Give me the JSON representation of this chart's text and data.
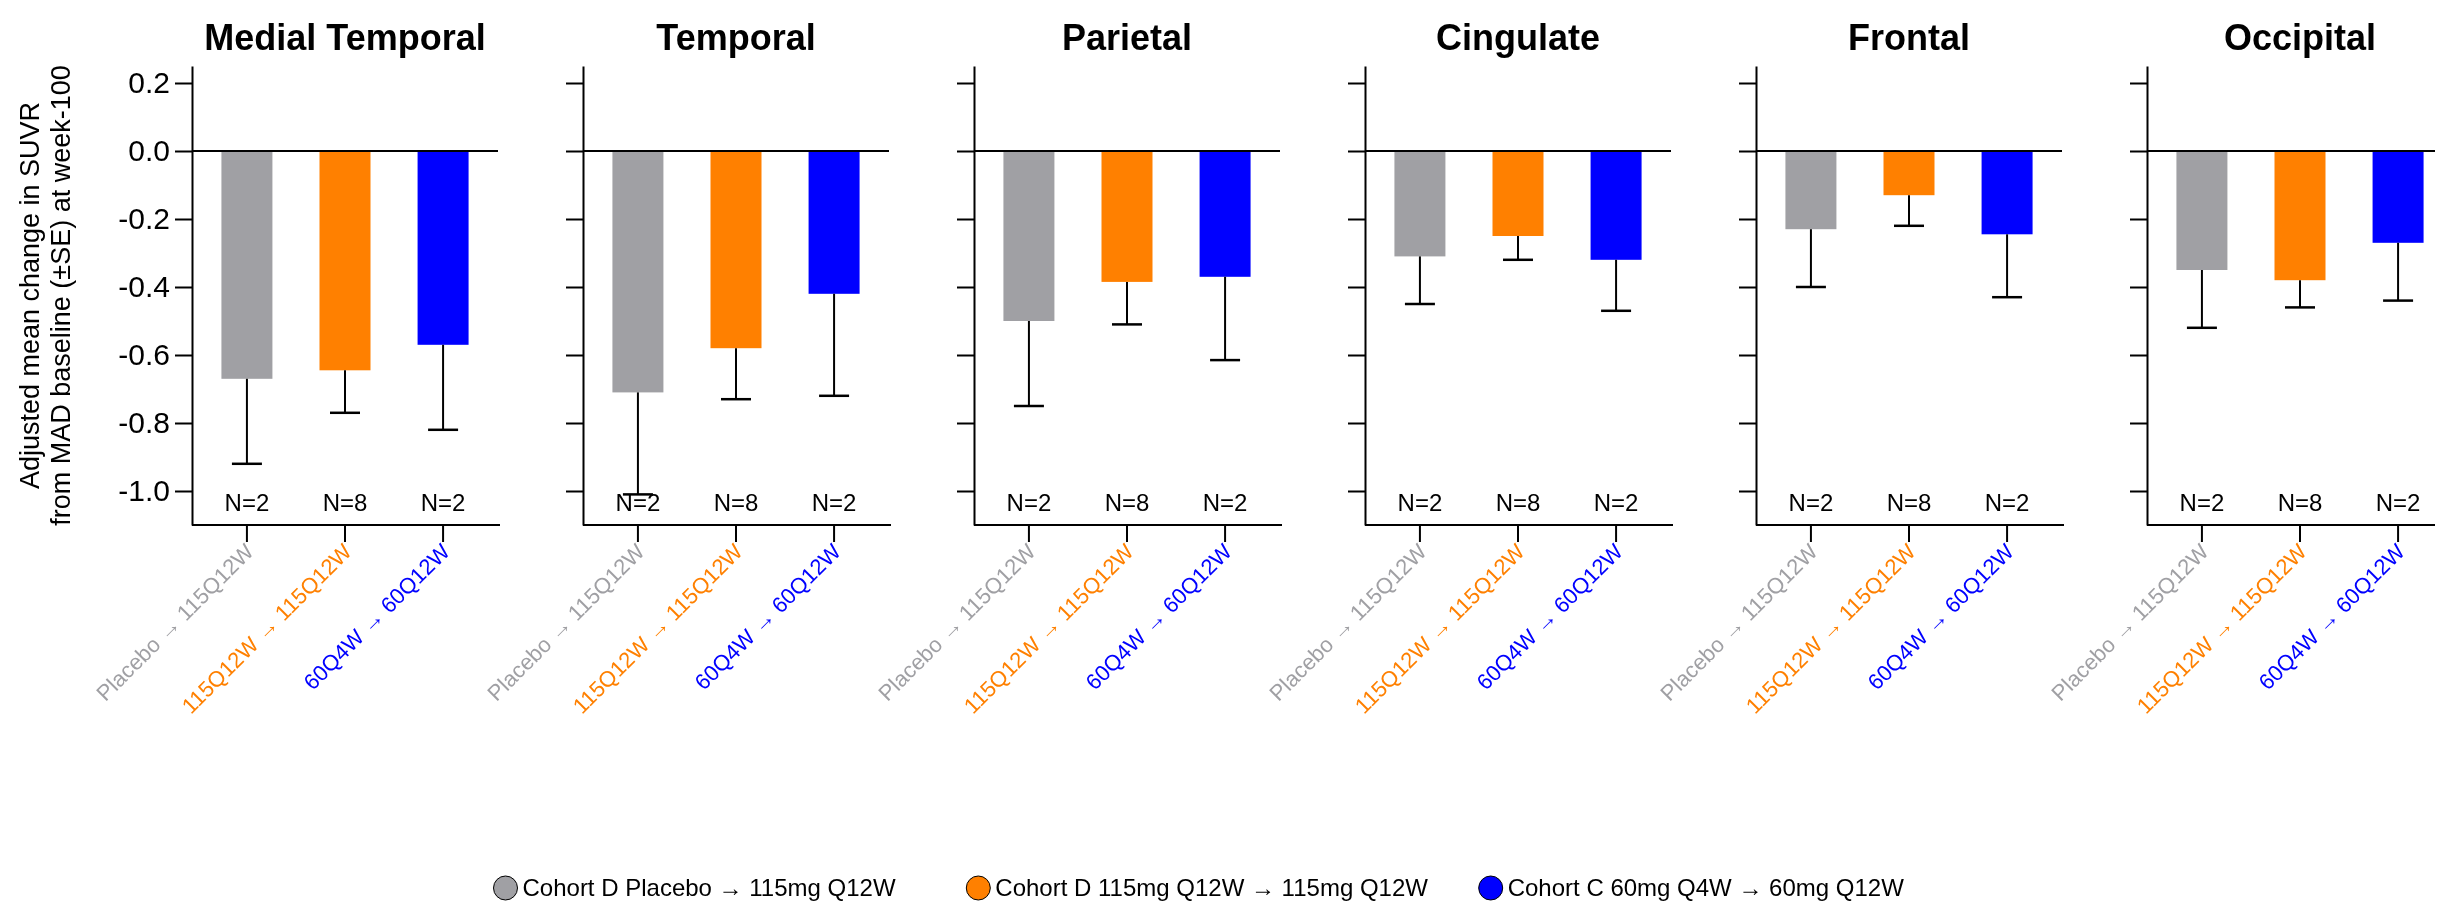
{
  "chart_data": [
    {
      "type": "bar",
      "title": "Medial Temporal",
      "ylabel": "Adjusted mean change in SUVR\nfrom MAD baseline (±SE) at week-100",
      "categories": [
        "Placebo → 115Q12W",
        "115Q12W → 115Q12W",
        "60Q4W → 60Q12W"
      ],
      "ylim": [
        -1.1,
        0.25
      ],
      "yticks": [
        {
          "value": 0.2,
          "label": "0.2"
        },
        {
          "value": 0,
          "label": "0.0"
        },
        {
          "value": -0.2,
          "label": "-0.2"
        },
        {
          "value": -0.4,
          "label": "-0.4"
        },
        {
          "value": -0.6,
          "label": "-0.6"
        },
        {
          "value": -0.8,
          "label": "-0.8"
        },
        {
          "value": -1,
          "label": "-1.0"
        }
      ],
      "legend": "bottom",
      "series": [
        {
          "name": "Cohort D Placebo → 115mg Q12W",
          "color": "#a0a0a4",
          "values": [
            -0.67,
            null,
            null
          ],
          "errors": [
            [
              -0.92,
              -0.67
            ],
            null,
            null
          ]
        },
        {
          "name": "Cohort D 115mg Q12W → 115mg Q12W",
          "color": "#ff8000",
          "values": [
            null,
            -0.645,
            null
          ],
          "errors": [
            null,
            [
              -0.77,
              -0.645
            ],
            null
          ]
        },
        {
          "name": "Cohort C 60mg Q4W → 60mg Q12W",
          "color": "#0000ff",
          "values": [
            null,
            null,
            -0.57
          ],
          "errors": [
            null,
            null,
            [
              -0.82,
              -0.57
            ]
          ]
        }
      ],
      "annotations": [
        "N=2",
        "N=8",
        "N=2"
      ]
    },
    {
      "type": "bar",
      "title": "Temporal",
      "categories": [
        "Placebo → 115Q12W",
        "115Q12W → 115Q12W",
        "60Q4W → 60Q12W"
      ],
      "ylim": [
        -1.1,
        0.25
      ],
      "yticks": [
        0.2,
        0,
        -0.2,
        -0.4,
        -0.6,
        -0.8,
        -1
      ],
      "tick_labels": "x",
      "series": [
        {
          "color": "#a0a0a4",
          "values": [
            -0.71,
            null,
            null
          ],
          "errors": [
            [
              -1.01,
              -0.71
            ],
            null,
            null
          ]
        },
        {
          "color": "#ff8000",
          "values": [
            null,
            -0.58,
            null
          ],
          "errors": [
            null,
            [
              -0.73,
              -0.58
            ],
            null
          ]
        },
        {
          "color": "#0000ff",
          "values": [
            null,
            null,
            -0.42
          ],
          "errors": [
            null,
            null,
            [
              -0.72,
              -0.42
            ]
          ]
        }
      ],
      "annotations": [
        "N=2",
        "N=8",
        "N=2"
      ]
    },
    {
      "type": "bar",
      "title": "Parietal",
      "categories": [
        "Placebo → 115Q12W",
        "115Q12W → 115Q12W",
        "60Q4W → 60Q12W"
      ],
      "ylim": [
        -1.1,
        0.25
      ],
      "yticks": [
        0.2,
        0,
        -0.2,
        -0.4,
        -0.6,
        -0.8,
        -1
      ],
      "tick_labels": "x",
      "series": [
        {
          "color": "#a0a0a4",
          "values": [
            -0.5,
            null,
            null
          ],
          "errors": [
            [
              -0.75,
              -0.5
            ],
            null,
            null
          ]
        },
        {
          "color": "#ff8000",
          "values": [
            null,
            -0.385,
            null
          ],
          "errors": [
            null,
            [
              -0.51,
              -0.385
            ],
            null
          ]
        },
        {
          "color": "#0000ff",
          "values": [
            null,
            null,
            -0.37
          ],
          "errors": [
            null,
            null,
            [
              -0.615,
              -0.37
            ]
          ]
        }
      ],
      "annotations": [
        "N=2",
        "N=8",
        "N=2"
      ]
    },
    {
      "type": "bar",
      "title": "Cingulate",
      "categories": [
        "Placebo → 115Q12W",
        "115Q12W → 115Q12W",
        "60Q4W → 60Q12W"
      ],
      "ylim": [
        -1.1,
        0.25
      ],
      "yticks": [
        0.2,
        0,
        -0.2,
        -0.4,
        -0.6,
        -0.8,
        -1
      ],
      "tick_labels": "x",
      "series": [
        {
          "color": "#a0a0a4",
          "values": [
            -0.31,
            null,
            null
          ],
          "errors": [
            [
              -0.45,
              -0.31
            ],
            null,
            null
          ]
        },
        {
          "color": "#ff8000",
          "values": [
            null,
            -0.25,
            null
          ],
          "errors": [
            null,
            [
              -0.32,
              -0.25
            ],
            null
          ]
        },
        {
          "color": "#0000ff",
          "values": [
            null,
            null,
            -0.32
          ],
          "errors": [
            null,
            null,
            [
              -0.47,
              -0.32
            ]
          ]
        }
      ],
      "annotations": [
        "N=2",
        "N=8",
        "N=2"
      ]
    },
    {
      "type": "bar",
      "title": "Frontal",
      "categories": [
        "Placebo → 115Q12W",
        "115Q12W → 115Q12W",
        "60Q4W → 60Q12W"
      ],
      "ylim": [
        -1.1,
        0.25
      ],
      "yticks": [
        0.2,
        0,
        -0.2,
        -0.4,
        -0.6,
        -0.8,
        -1
      ],
      "tick_labels": "x",
      "series": [
        {
          "color": "#a0a0a4",
          "values": [
            -0.23,
            null,
            null
          ],
          "errors": [
            [
              -0.4,
              -0.23
            ],
            null,
            null
          ]
        },
        {
          "color": "#ff8000",
          "values": [
            null,
            -0.13,
            null
          ],
          "errors": [
            null,
            [
              -0.22,
              -0.13
            ],
            null
          ]
        },
        {
          "color": "#0000ff",
          "values": [
            null,
            null,
            -0.245
          ],
          "errors": [
            null,
            null,
            [
              -0.43,
              -0.245
            ]
          ]
        }
      ],
      "annotations": [
        "N=2",
        "N=8",
        "N=2"
      ]
    },
    {
      "type": "bar",
      "title": "Occipital",
      "categories": [
        "Placebo → 115Q12W",
        "115Q12W → 115Q12W",
        "60Q4W → 60Q12W"
      ],
      "ylim": [
        -1.1,
        0.25
      ],
      "yticks": [
        0.2,
        0,
        -0.2,
        -0.4,
        -0.6,
        -0.8,
        -1
      ],
      "tick_labels": "x",
      "series": [
        {
          "color": "#a0a0a4",
          "values": [
            -0.35,
            null,
            null
          ],
          "errors": [
            [
              -0.52,
              -0.35
            ],
            null,
            null
          ]
        },
        {
          "color": "#ff8000",
          "values": [
            null,
            -0.38,
            null
          ],
          "errors": [
            null,
            [
              -0.46,
              -0.38
            ],
            null
          ]
        },
        {
          "color": "#0000ff",
          "values": [
            null,
            null,
            -0.27
          ],
          "errors": [
            null,
            null,
            [
              -0.44,
              -0.27
            ]
          ]
        }
      ],
      "annotations": [
        "N=2",
        "N=8",
        "N=2"
      ]
    }
  ]
}
